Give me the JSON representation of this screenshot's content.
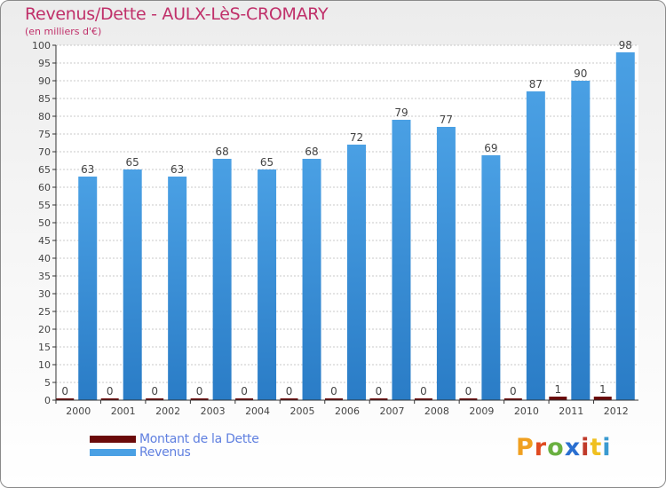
{
  "title": "Revenus/Dette - AULX-LèS-CROMARY",
  "subtitle": "(en milliers d'€)",
  "logo": {
    "text": "Proxiti",
    "letter_colors": [
      "#f0a020",
      "#e04a20",
      "#6ab040",
      "#2a6fd0",
      "#c03a2a",
      "#f0c020",
      "#3a9ad0"
    ]
  },
  "colors": {
    "dette": "#6b0a0a",
    "revenus": "#4aa0e4",
    "revenus_dark": "#2a7cc6",
    "grid": "#c8c8c8",
    "axis": "#333333",
    "text": "#444444"
  },
  "chart_data": {
    "type": "bar",
    "categories": [
      "2000",
      "2001",
      "2002",
      "2003",
      "2004",
      "2005",
      "2006",
      "2007",
      "2008",
      "2009",
      "2010",
      "2011",
      "2012"
    ],
    "series": [
      {
        "name": "Montant de la Dette",
        "values": [
          0,
          0,
          0,
          0,
          0,
          0,
          0,
          0,
          0,
          0,
          0,
          1,
          1
        ]
      },
      {
        "name": "Revenus",
        "values": [
          63,
          65,
          63,
          68,
          65,
          68,
          72,
          79,
          77,
          69,
          87,
          90,
          98
        ]
      }
    ],
    "ylim": [
      0,
      100
    ],
    "ytick_step": 5,
    "grid": true,
    "legend_position": "bottom-left"
  }
}
